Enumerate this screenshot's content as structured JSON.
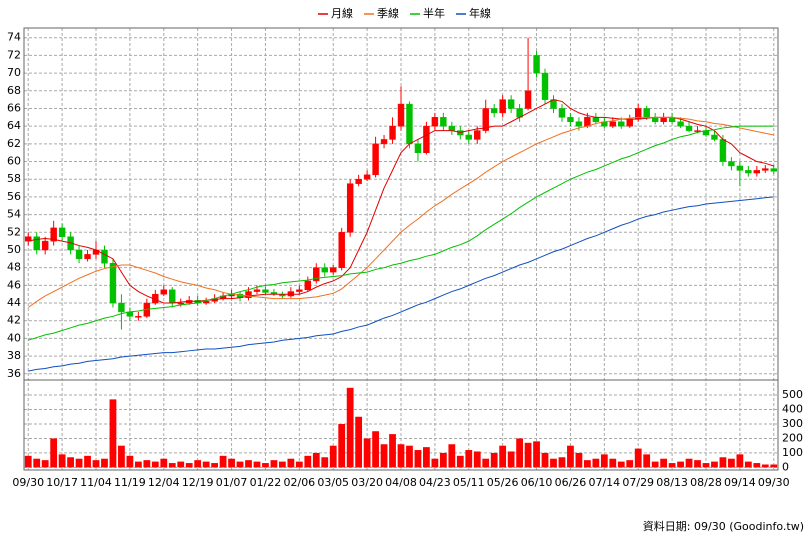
{
  "chart_data": {
    "type": "candlestick",
    "categories": [
      "09/30",
      null,
      null,
      null,
      "10/17",
      null,
      null,
      null,
      "11/04",
      null,
      null,
      null,
      "11/19",
      null,
      null,
      null,
      "12/04",
      null,
      null,
      null,
      "12/19",
      null,
      null,
      null,
      "01/07",
      null,
      null,
      null,
      "01/22",
      null,
      null,
      null,
      "02/06",
      null,
      null,
      null,
      "03/05",
      null,
      null,
      null,
      "03/20",
      null,
      null,
      null,
      "04/08",
      null,
      null,
      null,
      "04/23",
      null,
      null,
      null,
      "05/11",
      null,
      null,
      null,
      "05/26",
      null,
      null,
      null,
      "06/10",
      null,
      null,
      null,
      "06/26",
      null,
      null,
      null,
      "07/14",
      null,
      null,
      null,
      "07/29",
      null,
      null,
      null,
      "08/13",
      null,
      null,
      null,
      "08/28",
      null,
      null,
      null,
      "09/14",
      null,
      null,
      null,
      "09/30"
    ],
    "open": [
      51,
      51.5,
      50,
      51,
      52.5,
      51.5,
      50,
      49,
      49.5,
      50,
      48.5,
      44,
      43,
      42.5,
      42.5,
      44,
      45,
      45.5,
      44,
      44,
      44.3,
      44,
      44.2,
      44.5,
      44.8,
      45,
      44.6,
      45.3,
      45.5,
      45.2,
      45,
      44.8,
      45.3,
      45.5,
      46.5,
      48,
      47.5,
      48,
      52,
      57.5,
      58,
      58.5,
      62,
      62.5,
      64,
      66.5,
      62,
      61,
      64,
      65,
      64,
      63.5,
      63,
      62.5,
      63.5,
      66,
      65.5,
      67,
      66,
      66,
      72,
      70,
      67,
      66,
      65,
      64.5,
      64,
      65,
      64.5,
      64,
      64.5,
      64,
      64.8,
      66,
      65,
      64.5,
      65,
      64.5,
      64,
      63.5,
      63.5,
      63,
      62.5,
      60,
      59.5,
      59,
      58.7,
      59,
      59.2
    ],
    "high": [
      52,
      52,
      51.5,
      53.3,
      53,
      52,
      50.5,
      50,
      51,
      50.5,
      49,
      45,
      43.5,
      43,
      44.5,
      45.5,
      46,
      45.8,
      44.5,
      44.8,
      44.8,
      44.6,
      45,
      45.2,
      45.5,
      45.3,
      45.8,
      46,
      45.9,
      45.6,
      45.3,
      45.8,
      46,
      47,
      48.5,
      48.5,
      48.3,
      52.5,
      58,
      58.5,
      59,
      62.8,
      63,
      65,
      68.5,
      66.8,
      62.5,
      64.5,
      65.5,
      65.5,
      64.5,
      64,
      63.5,
      64,
      67,
      66.5,
      67.5,
      67.5,
      66.5,
      74,
      72.5,
      70.5,
      67.5,
      66.5,
      65.5,
      65,
      65.5,
      65.5,
      65,
      65,
      65,
      65.3,
      66.5,
      66.3,
      65.5,
      65.5,
      65.5,
      65,
      64.5,
      64,
      64,
      63.5,
      63,
      60.5,
      60,
      59.5,
      59.5,
      59.6,
      59.6
    ],
    "low": [
      50.5,
      49.5,
      49.5,
      50.5,
      51,
      49.5,
      48.5,
      48.7,
      49,
      48,
      43.5,
      41,
      42,
      42,
      42.3,
      43.8,
      44.8,
      43.5,
      43.6,
      43.8,
      43.7,
      43.8,
      44,
      44.3,
      44.5,
      44.2,
      44.3,
      45,
      45,
      44.8,
      44.5,
      44.6,
      45,
      45.3,
      46.2,
      47,
      47.2,
      47.7,
      51.5,
      57.2,
      57.8,
      58.2,
      61.5,
      62,
      63.5,
      61.5,
      60,
      60.8,
      63.5,
      63.5,
      63,
      62.5,
      62,
      62,
      63.2,
      65,
      65,
      65.5,
      64.5,
      65.8,
      69.5,
      66.5,
      65.5,
      64.5,
      64,
      63.5,
      63.8,
      64.2,
      63.8,
      63.8,
      63.7,
      63.8,
      64.5,
      64.7,
      64.2,
      64.2,
      64.2,
      63.8,
      63.3,
      63.2,
      62.8,
      62.3,
      59.5,
      59,
      57.2,
      58.3,
      58.3,
      58.7,
      58.6
    ],
    "close": [
      51.5,
      50,
      51,
      52.5,
      51.5,
      50,
      49,
      49.5,
      50,
      48.5,
      44,
      43,
      42.5,
      42.5,
      44,
      45,
      45.5,
      44,
      44,
      44.3,
      44,
      44.2,
      44.5,
      44.8,
      45,
      44.6,
      45.3,
      45.5,
      45.2,
      45,
      44.8,
      45.3,
      45.5,
      46.5,
      48,
      47.5,
      48,
      52,
      57.5,
      58,
      58.5,
      62,
      62.5,
      64,
      66.5,
      62,
      61,
      64,
      65,
      64,
      63.5,
      63,
      62.5,
      63.5,
      66,
      65.5,
      67,
      66,
      65,
      68,
      70,
      67,
      66,
      65,
      64.5,
      64,
      65,
      64.5,
      64,
      64.5,
      64,
      64.8,
      66,
      65,
      64.5,
      65,
      64.5,
      64,
      63.5,
      63.5,
      63,
      62.5,
      60,
      59.5,
      59,
      58.7,
      59,
      59.2,
      58.9
    ],
    "up_color": "#ff0000",
    "down_color": "#00c000",
    "ma": [
      {
        "name": "月線",
        "color": "#e00000",
        "values": [
          51,
          51.2,
          51.3,
          51.2,
          51,
          50.8,
          50.5,
          50.3,
          50,
          49.5,
          49,
          47.5,
          46,
          45.3,
          44.8,
          44.4,
          44,
          44,
          44.1,
          44.2,
          44.2,
          44.3,
          44.4,
          44.5,
          44.5,
          44.6,
          44.8,
          44.9,
          45,
          45,
          45,
          45,
          45,
          45.3,
          45.8,
          46.2,
          46.5,
          47,
          48,
          50,
          52,
          54.5,
          57,
          59,
          61,
          62,
          62.5,
          63,
          63.5,
          63.5,
          63.5,
          63.3,
          63.5,
          63.7,
          63.8,
          64,
          64,
          64.5,
          65,
          65.5,
          66,
          66.5,
          67,
          66.8,
          66,
          65.5,
          65.2,
          65,
          65,
          64.9,
          64.8,
          64.8,
          64.8,
          64.9,
          65,
          65,
          65,
          64.8,
          64.5,
          64.2,
          64,
          63.5,
          62.5,
          62,
          61,
          60.5,
          60,
          59.8,
          59.5
        ]
      },
      {
        "name": "季線",
        "color": "#f07020",
        "values": [
          43.5,
          44.2,
          44.8,
          45.3,
          45.8,
          46.3,
          46.8,
          47.2,
          47.6,
          47.9,
          48.1,
          48.3,
          48.3,
          48,
          47.7,
          47.4,
          47,
          46.7,
          46.4,
          46.2,
          46,
          45.7,
          45.5,
          45.2,
          45,
          44.9,
          44.8,
          44.7,
          44.6,
          44.5,
          44.5,
          44.5,
          44.5,
          44.6,
          44.7,
          44.9,
          45.1,
          45.6,
          46.4,
          47.2,
          48,
          49,
          50,
          51,
          52,
          52.8,
          53.5,
          54.3,
          55,
          55.6,
          56.3,
          56.9,
          57.5,
          58.1,
          58.8,
          59.4,
          60,
          60.5,
          61,
          61.5,
          62,
          62.4,
          62.8,
          63.2,
          63.5,
          63.8,
          64,
          64.3,
          64.5,
          64.6,
          64.8,
          64.9,
          65,
          65,
          65,
          65,
          65,
          64.9,
          64.8,
          64.6,
          64.5,
          64.3,
          64.2,
          64,
          63.8,
          63.6,
          63.4,
          63.2,
          63
        ]
      },
      {
        "name": "半年",
        "color": "#00c000",
        "values": [
          39.8,
          40.1,
          40.4,
          40.6,
          40.9,
          41.2,
          41.5,
          41.7,
          42,
          42.3,
          42.5,
          42.8,
          43,
          43.1,
          43.3,
          43.4,
          43.5,
          43.6,
          43.8,
          43.9,
          44,
          44.3,
          44.5,
          44.8,
          45,
          45.3,
          45.5,
          45.8,
          46,
          46.1,
          46.3,
          46.4,
          46.5,
          46.6,
          46.8,
          46.9,
          47,
          47.1,
          47.3,
          47.4,
          47.5,
          47.8,
          48,
          48.3,
          48.5,
          48.8,
          49,
          49.3,
          49.5,
          49.9,
          50.3,
          50.6,
          51,
          51.6,
          52.3,
          52.9,
          53.5,
          54.1,
          54.8,
          55.4,
          56,
          56.5,
          57,
          57.5,
          58,
          58.4,
          58.8,
          59.1,
          59.5,
          59.9,
          60.3,
          60.6,
          61,
          61.4,
          61.8,
          62.1,
          62.5,
          62.8,
          63,
          63.3,
          63.5,
          63.6,
          63.8,
          63.9,
          64,
          64,
          64,
          64,
          64
        ]
      },
      {
        "name": "年線",
        "color": "#1050c0",
        "values": [
          36.3,
          36.5,
          36.6,
          36.8,
          36.9,
          37.1,
          37.2,
          37.4,
          37.5,
          37.6,
          37.7,
          37.9,
          38,
          38.1,
          38.2,
          38.3,
          38.4,
          38.4,
          38.5,
          38.6,
          38.7,
          38.8,
          38.8,
          38.9,
          39,
          39.1,
          39.3,
          39.4,
          39.5,
          39.6,
          39.8,
          39.9,
          40,
          40.1,
          40.3,
          40.4,
          40.5,
          40.8,
          41,
          41.3,
          41.5,
          41.9,
          42.3,
          42.6,
          43,
          43.4,
          43.8,
          44.1,
          44.5,
          44.9,
          45.3,
          45.6,
          46,
          46.4,
          46.8,
          47.1,
          47.5,
          47.9,
          48.3,
          48.6,
          49,
          49.4,
          49.8,
          50.1,
          50.5,
          50.9,
          51.3,
          51.6,
          52,
          52.4,
          52.8,
          53.1,
          53.5,
          53.8,
          54,
          54.3,
          54.5,
          54.7,
          54.9,
          55,
          55.2,
          55.3,
          55.4,
          55.5,
          55.6,
          55.7,
          55.8,
          55.9,
          56
        ]
      }
    ],
    "volume": {
      "color": "#ff0000",
      "values": [
        80,
        60,
        50,
        200,
        90,
        70,
        60,
        80,
        50,
        60,
        470,
        150,
        80,
        40,
        50,
        40,
        60,
        30,
        40,
        30,
        50,
        40,
        30,
        80,
        60,
        40,
        50,
        40,
        30,
        50,
        40,
        60,
        40,
        80,
        100,
        70,
        150,
        300,
        550,
        350,
        200,
        250,
        160,
        230,
        160,
        150,
        120,
        140,
        60,
        100,
        160,
        80,
        120,
        110,
        60,
        100,
        150,
        110,
        200,
        170,
        180,
        100,
        60,
        70,
        150,
        100,
        50,
        60,
        90,
        60,
        40,
        50,
        130,
        90,
        40,
        60,
        30,
        40,
        60,
        50,
        30,
        40,
        70,
        60,
        90,
        40,
        30,
        20,
        20
      ]
    },
    "ylim": [
      35.3,
      75.1
    ],
    "yticks": [
      36,
      38,
      40,
      42,
      44,
      46,
      48,
      50,
      52,
      54,
      56,
      58,
      60,
      62,
      64,
      66,
      68,
      70,
      72,
      74
    ],
    "y2lim": [
      -18,
      604
    ],
    "y2ticks": [
      0,
      100,
      200,
      300,
      400,
      500
    ],
    "grid": true,
    "footer": "資料日期: 09/30 (Goodinfo.tw)"
  }
}
